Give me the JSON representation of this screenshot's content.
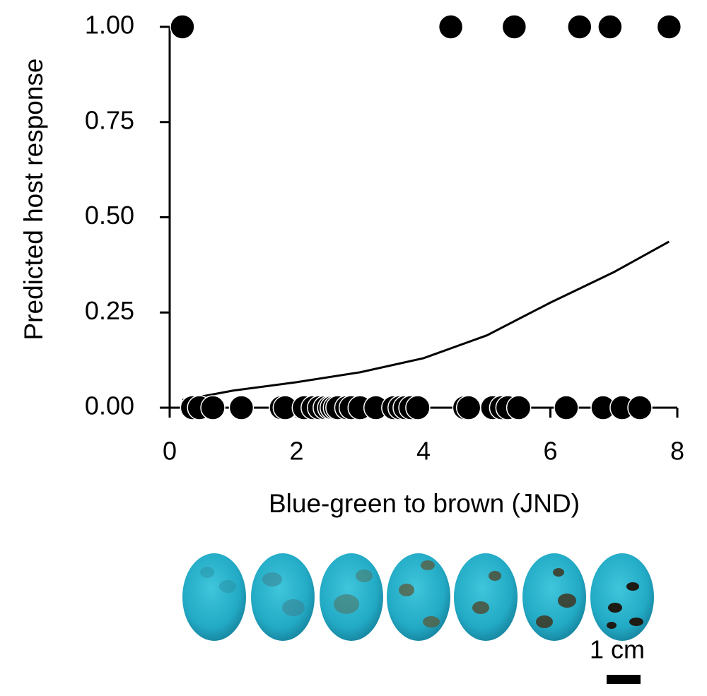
{
  "chart_data": {
    "type": "scatter",
    "xlabel": "Blue-green to brown (JND)",
    "ylabel": "Predicted host response",
    "xlim": [
      0,
      8
    ],
    "xticks": [
      0,
      2,
      4,
      6,
      8
    ],
    "ylim": [
      0,
      1
    ],
    "yticks": [
      {
        "value": 0,
        "label": "0.00"
      },
      {
        "value": 0.25,
        "label": "0.25"
      },
      {
        "value": 0.5,
        "label": "0.50"
      },
      {
        "value": 0.75,
        "label": "0.75"
      },
      {
        "value": 1,
        "label": "1.00"
      }
    ],
    "series": [
      {
        "type": "scatter",
        "color": "#000000",
        "x": [
          0.2,
          4.43,
          5.43,
          6.46,
          6.94,
          7.87,
          0.36,
          0.47,
          0.68,
          1.13,
          1.76,
          1.82,
          2.12,
          2.26,
          2.36,
          2.45,
          2.52,
          2.56,
          2.61,
          2.65,
          2.79,
          2.86,
          3.0,
          3.25,
          3.53,
          3.63,
          3.71,
          3.8,
          3.91,
          4.65,
          4.71,
          5.09,
          5.23,
          5.33,
          5.5,
          6.25,
          6.83,
          7.13,
          7.41
        ],
        "values": [
          1,
          1,
          1,
          1,
          1,
          1,
          0,
          0,
          0,
          0,
          0,
          0,
          0,
          0,
          0,
          0,
          0,
          0,
          0,
          0,
          0,
          0,
          0,
          0,
          0,
          0,
          0,
          0,
          0,
          0,
          0,
          0,
          0,
          0,
          0,
          0,
          0,
          0,
          0
        ]
      },
      {
        "type": "line",
        "color": "#000000",
        "x": [
          0.2,
          1,
          2,
          3,
          4,
          5,
          6,
          7,
          7.87
        ],
        "values": [
          0.02,
          0.045,
          0.067,
          0.093,
          0.13,
          0.19,
          0.276,
          0.356,
          0.436
        ]
      }
    ]
  },
  "scale_bar_label": "1 cm"
}
